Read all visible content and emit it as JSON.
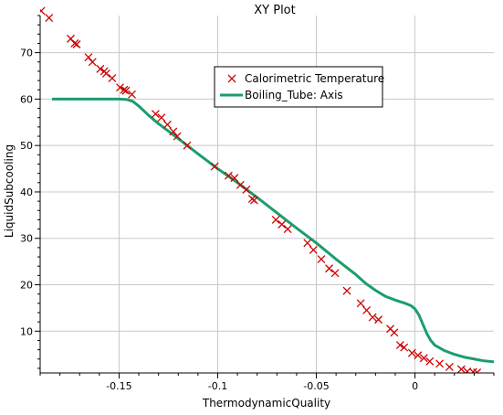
{
  "chart_data": {
    "type": "scatter",
    "title": "XY Plot",
    "xlabel": "ThermodynamicQuality",
    "ylabel": "LiquidSubcooling",
    "xlim": [
      -0.19,
      0.04
    ],
    "ylim": [
      1,
      78
    ],
    "x_ticks": [
      -0.15,
      -0.1,
      -0.05,
      0
    ],
    "x_tick_labels": [
      "-0.15",
      "-0.1",
      "-0.05",
      "0"
    ],
    "y_ticks": [
      10,
      20,
      30,
      40,
      50,
      60,
      70
    ],
    "y_tick_labels": [
      "10",
      "20",
      "30",
      "40",
      "50",
      "60",
      "70"
    ],
    "grid": true,
    "legend_position": "top-center",
    "series": [
      {
        "name": "Calorimetric Temperature",
        "kind": "marker",
        "marker": "x",
        "color": "#cc0000",
        "points": [
          [
            -0.1895,
            79.0
          ],
          [
            -0.1855,
            77.5
          ],
          [
            -0.1745,
            73.0
          ],
          [
            -0.1725,
            72.0
          ],
          [
            -0.1715,
            71.8
          ],
          [
            -0.1655,
            69.0
          ],
          [
            -0.1635,
            68.0
          ],
          [
            -0.1595,
            66.5
          ],
          [
            -0.1575,
            66.0
          ],
          [
            -0.1565,
            65.5
          ],
          [
            -0.1535,
            64.5
          ],
          [
            -0.1495,
            62.5
          ],
          [
            -0.1475,
            62.0
          ],
          [
            -0.1465,
            61.8
          ],
          [
            -0.1435,
            61.0
          ],
          [
            -0.1315,
            56.8
          ],
          [
            -0.1285,
            56.0
          ],
          [
            -0.1255,
            54.5
          ],
          [
            -0.1225,
            53.0
          ],
          [
            -0.1205,
            52.0
          ],
          [
            -0.1155,
            50.0
          ],
          [
            -0.1015,
            45.5
          ],
          [
            -0.0945,
            43.5
          ],
          [
            -0.0915,
            43.0
          ],
          [
            -0.0885,
            41.5
          ],
          [
            -0.0855,
            40.5
          ],
          [
            -0.0825,
            38.5
          ],
          [
            -0.0815,
            38.2
          ],
          [
            -0.0705,
            34.0
          ],
          [
            -0.0675,
            33.0
          ],
          [
            -0.0645,
            32.0
          ],
          [
            -0.0545,
            29.0
          ],
          [
            -0.0515,
            27.5
          ],
          [
            -0.0475,
            25.5
          ],
          [
            -0.0435,
            23.5
          ],
          [
            -0.0405,
            22.5
          ],
          [
            -0.0345,
            18.7
          ],
          [
            -0.0275,
            16.0
          ],
          [
            -0.0245,
            14.5
          ],
          [
            -0.0215,
            13.0
          ],
          [
            -0.0185,
            12.5
          ],
          [
            -0.0125,
            10.5
          ],
          [
            -0.0105,
            9.7
          ],
          [
            -0.0075,
            7.0
          ],
          [
            -0.0055,
            6.5
          ],
          [
            -0.0015,
            5.3
          ],
          [
            0.0015,
            4.8
          ],
          [
            0.0045,
            4.2
          ],
          [
            0.0075,
            3.5
          ],
          [
            0.0125,
            3.0
          ],
          [
            0.0175,
            2.3
          ],
          [
            0.0235,
            1.8
          ],
          [
            0.0265,
            1.3
          ],
          [
            0.0295,
            1.2
          ],
          [
            0.0315,
            1.1
          ]
        ]
      },
      {
        "name": "Boiling_Tube: Axis",
        "kind": "line",
        "color": "#1a9e6e",
        "points": [
          [
            -0.184,
            60.0
          ],
          [
            -0.16,
            60.0
          ],
          [
            -0.15,
            60.0
          ],
          [
            -0.146,
            59.9
          ],
          [
            -0.143,
            59.5
          ],
          [
            -0.14,
            58.5
          ],
          [
            -0.135,
            56.5
          ],
          [
            -0.13,
            54.7
          ],
          [
            -0.12,
            51.5
          ],
          [
            -0.11,
            48.2
          ],
          [
            -0.1,
            45.0
          ],
          [
            -0.09,
            42.0
          ],
          [
            -0.08,
            38.8
          ],
          [
            -0.07,
            35.5
          ],
          [
            -0.06,
            32.2
          ],
          [
            -0.05,
            29.0
          ],
          [
            -0.04,
            25.5
          ],
          [
            -0.03,
            22.2
          ],
          [
            -0.025,
            20.3
          ],
          [
            -0.02,
            18.8
          ],
          [
            -0.015,
            17.5
          ],
          [
            -0.01,
            16.7
          ],
          [
            -0.005,
            16.0
          ],
          [
            -0.002,
            15.5
          ],
          [
            0.0,
            14.8
          ],
          [
            0.002,
            13.5
          ],
          [
            0.004,
            11.5
          ],
          [
            0.006,
            9.5
          ],
          [
            0.008,
            8.0
          ],
          [
            0.01,
            7.0
          ],
          [
            0.015,
            5.8
          ],
          [
            0.02,
            5.0
          ],
          [
            0.025,
            4.4
          ],
          [
            0.03,
            4.0
          ],
          [
            0.035,
            3.6
          ],
          [
            0.04,
            3.4
          ]
        ]
      }
    ]
  }
}
